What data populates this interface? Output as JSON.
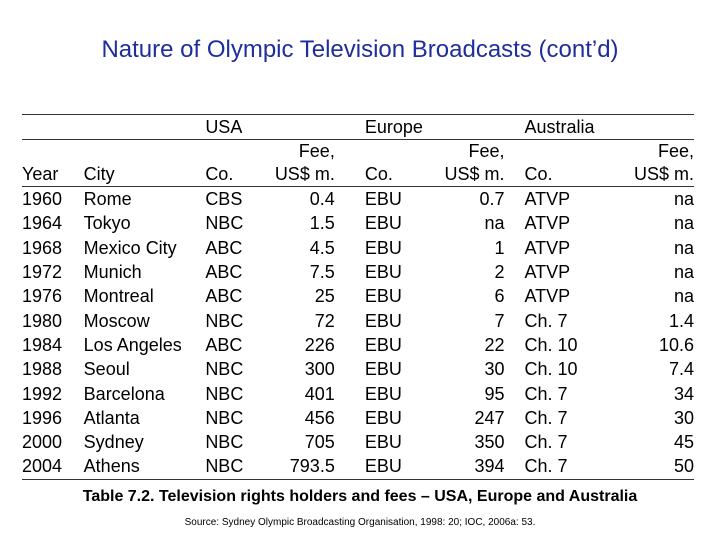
{
  "title": "Nature of Olympic Television Broadcasts (cont’d)",
  "table": {
    "group_headers": {
      "usa": "USA",
      "europe": "Europe",
      "australia": "Australia"
    },
    "fee_header_line1": "Fee,",
    "fee_header_line2": "US$ m.",
    "columns": {
      "year": "Year",
      "city": "City",
      "co": "Co."
    },
    "rows": [
      {
        "year": "1960",
        "city": "Rome",
        "us_co": "CBS",
        "us_fee": "0.4",
        "eu_co": "EBU",
        "eu_fee": "0.7",
        "au_co": "ATVP",
        "au_fee": "na"
      },
      {
        "year": "1964",
        "city": "Tokyo",
        "us_co": "NBC",
        "us_fee": "1.5",
        "eu_co": "EBU",
        "eu_fee": "na",
        "au_co": "ATVP",
        "au_fee": "na"
      },
      {
        "year": "1968",
        "city": "Mexico City",
        "us_co": "ABC",
        "us_fee": "4.5",
        "eu_co": "EBU",
        "eu_fee": "1",
        "au_co": "ATVP",
        "au_fee": "na"
      },
      {
        "year": "1972",
        "city": "Munich",
        "us_co": "ABC",
        "us_fee": "7.5",
        "eu_co": "EBU",
        "eu_fee": "2",
        "au_co": "ATVP",
        "au_fee": "na"
      },
      {
        "year": "1976",
        "city": "Montreal",
        "us_co": "ABC",
        "us_fee": "25",
        "eu_co": "EBU",
        "eu_fee": "6",
        "au_co": "ATVP",
        "au_fee": "na"
      },
      {
        "year": "1980",
        "city": "Moscow",
        "us_co": "NBC",
        "us_fee": "72",
        "eu_co": "EBU",
        "eu_fee": "7",
        "au_co": "Ch. 7",
        "au_fee": "1.4"
      },
      {
        "year": "1984",
        "city": "Los Angeles",
        "us_co": "ABC",
        "us_fee": "226",
        "eu_co": "EBU",
        "eu_fee": "22",
        "au_co": "Ch. 10",
        "au_fee": "10.6"
      },
      {
        "year": "1988",
        "city": "Seoul",
        "us_co": "NBC",
        "us_fee": "300",
        "eu_co": "EBU",
        "eu_fee": "30",
        "au_co": "Ch. 10",
        "au_fee": "7.4"
      },
      {
        "year": "1992",
        "city": "Barcelona",
        "us_co": "NBC",
        "us_fee": "401",
        "eu_co": "EBU",
        "eu_fee": "95",
        "au_co": "Ch. 7",
        "au_fee": "34"
      },
      {
        "year": "1996",
        "city": "Atlanta",
        "us_co": "NBC",
        "us_fee": "456",
        "eu_co": "EBU",
        "eu_fee": "247",
        "au_co": "Ch. 7",
        "au_fee": "30"
      },
      {
        "year": "2000",
        "city": "Sydney",
        "us_co": "NBC",
        "us_fee": "705",
        "eu_co": "EBU",
        "eu_fee": "350",
        "au_co": "Ch. 7",
        "au_fee": "45"
      },
      {
        "year": "2004",
        "city": "Athens",
        "us_co": "NBC",
        "us_fee": "793.5",
        "eu_co": "EBU",
        "eu_fee": "394",
        "au_co": "Ch. 7",
        "au_fee": "50"
      }
    ]
  },
  "caption": "Table 7.2. Television rights holders and fees – USA, Europe and Australia",
  "source": "Source: Sydney Olympic Broadcasting Organisation, 1998: 20; IOC, 2006a: 53.",
  "colors": {
    "title": "#1f2e9c",
    "rule": "#333333"
  }
}
